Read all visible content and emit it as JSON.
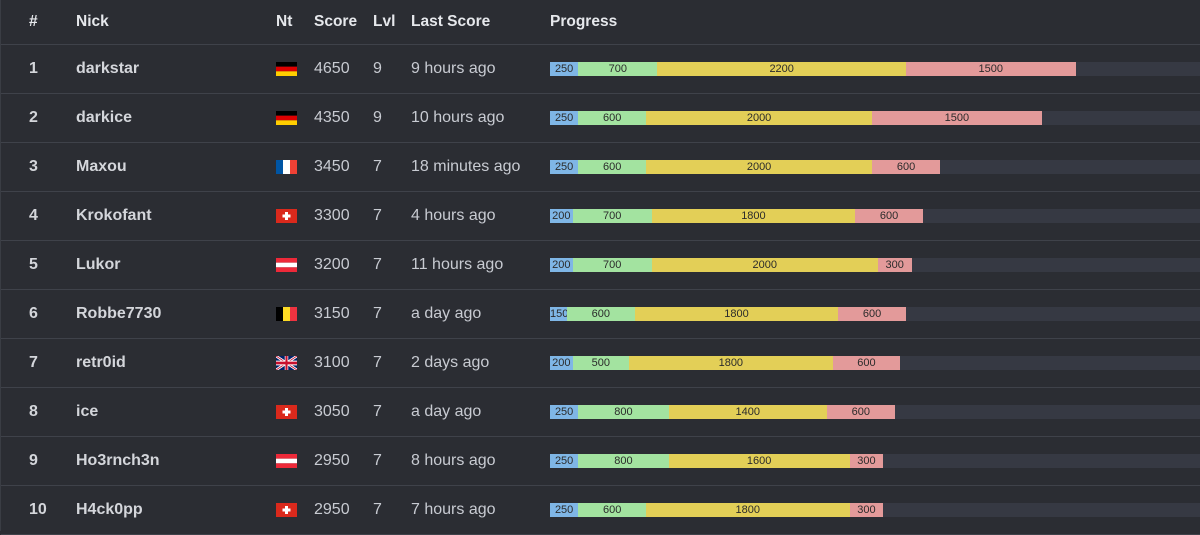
{
  "headers": {
    "rank": "#",
    "nick": "Nick",
    "nt": "Nt",
    "score": "Score",
    "lvl": "Lvl",
    "last": "Last Score",
    "progress": "Progress"
  },
  "colors": {
    "segments": [
      "#7fb6e6",
      "#a3e3a0",
      "#e3cf57",
      "#e39a9a"
    ],
    "track": "#363943"
  },
  "scale_max": 5760,
  "rows": [
    {
      "rank": "1",
      "nick": "darkstar",
      "flag": "germany",
      "score": "4650",
      "lvl": "9",
      "last": "9 hours ago",
      "progress": [
        250,
        700,
        2200,
        1500
      ]
    },
    {
      "rank": "2",
      "nick": "darkice",
      "flag": "germany",
      "score": "4350",
      "lvl": "9",
      "last": "10 hours ago",
      "progress": [
        250,
        600,
        2000,
        1500
      ]
    },
    {
      "rank": "3",
      "nick": "Maxou",
      "flag": "france",
      "score": "3450",
      "lvl": "7",
      "last": "18 minutes ago",
      "progress": [
        250,
        600,
        2000,
        600
      ]
    },
    {
      "rank": "4",
      "nick": "Krokofant",
      "flag": "switzerland",
      "score": "3300",
      "lvl": "7",
      "last": "4 hours ago",
      "progress": [
        200,
        700,
        1800,
        600
      ]
    },
    {
      "rank": "5",
      "nick": "Lukor",
      "flag": "austria",
      "score": "3200",
      "lvl": "7",
      "last": "11 hours ago",
      "progress": [
        200,
        700,
        2000,
        300
      ]
    },
    {
      "rank": "6",
      "nick": "Robbe7730",
      "flag": "belgium",
      "score": "3150",
      "lvl": "7",
      "last": "a day ago",
      "progress": [
        150,
        600,
        1800,
        600
      ]
    },
    {
      "rank": "7",
      "nick": "retr0id",
      "flag": "united-kingdom",
      "score": "3100",
      "lvl": "7",
      "last": "2 days ago",
      "progress": [
        200,
        500,
        1800,
        600
      ]
    },
    {
      "rank": "8",
      "nick": "ice",
      "flag": "switzerland",
      "score": "3050",
      "lvl": "7",
      "last": "a day ago",
      "progress": [
        250,
        800,
        1400,
        600
      ]
    },
    {
      "rank": "9",
      "nick": "Ho3rnch3n",
      "flag": "austria",
      "score": "2950",
      "lvl": "7",
      "last": "8 hours ago",
      "progress": [
        250,
        800,
        1600,
        300
      ]
    },
    {
      "rank": "10",
      "nick": "H4ck0pp",
      "flag": "switzerland",
      "score": "2950",
      "lvl": "7",
      "last": "7 hours ago",
      "progress": [
        250,
        600,
        1800,
        300
      ]
    }
  ]
}
